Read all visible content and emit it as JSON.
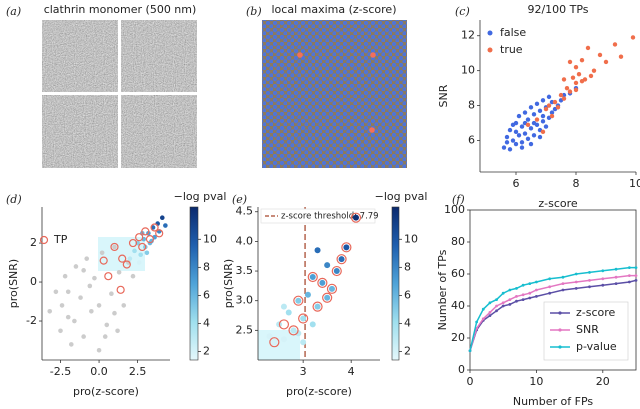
{
  "panel_labels": [
    "(a)",
    "(b)",
    "(c)",
    "(d)",
    "(e)",
    "(f)"
  ],
  "images": [
    {
      "title": "clathrin monomer (500 nm)"
    },
    {
      "title": "local maxima (z-score)"
    }
  ],
  "chart_data": [
    {
      "type": "scatter",
      "title": "92/100 TPs",
      "xlabel": "z-score",
      "ylabel": "SNR",
      "xlim": [
        4.8,
        10.0
      ],
      "ylim": [
        4.2,
        12.9
      ],
      "xticks": [
        6,
        8,
        10
      ],
      "yticks": [
        6,
        8,
        10,
        12
      ],
      "legend": "upper left",
      "series": [
        {
          "name": "false",
          "color": "#4169e1",
          "x": [
            5.6,
            5.7,
            5.8,
            5.8,
            5.9,
            5.9,
            6.0,
            6.0,
            6.1,
            6.1,
            6.2,
            6.2,
            6.3,
            6.3,
            6.4,
            6.4,
            6.5,
            6.5,
            6.6,
            6.6,
            6.7,
            6.7,
            6.8,
            6.8,
            6.9,
            6.9,
            7.0,
            7.0,
            7.1,
            7.1,
            7.2,
            7.3,
            7.4,
            7.5,
            7.6,
            7.8,
            8.0,
            5.7,
            6.0,
            6.3,
            6.6,
            6.9,
            7.2,
            6.2,
            6.5,
            6.8
          ],
          "y": [
            5.6,
            6.2,
            5.5,
            6.6,
            6.0,
            6.9,
            5.8,
            7.0,
            6.3,
            7.4,
            5.9,
            6.8,
            6.4,
            7.6,
            6.1,
            7.2,
            6.7,
            7.9,
            6.3,
            7.5,
            6.9,
            8.1,
            6.6,
            7.7,
            7.1,
            8.3,
            6.8,
            7.9,
            7.3,
            8.5,
            7.6,
            7.8,
            8.0,
            8.3,
            8.6,
            8.7,
            9.0,
            5.9,
            6.5,
            7.0,
            7.0,
            7.4,
            8.2,
            5.6,
            5.8,
            6.2
          ]
        },
        {
          "name": "true",
          "color": "#f06e4b",
          "x": [
            6.4,
            6.7,
            6.9,
            7.0,
            7.2,
            7.3,
            7.4,
            7.5,
            7.6,
            7.7,
            7.8,
            7.9,
            8.0,
            8.0,
            8.1,
            8.2,
            8.3,
            8.4,
            8.5,
            8.6,
            8.8,
            9.0,
            9.3,
            9.5,
            9.9,
            7.1,
            7.8,
            8.2,
            8.0,
            7.6
          ],
          "y": [
            6.9,
            7.2,
            6.5,
            7.8,
            7.4,
            8.2,
            7.9,
            8.6,
            8.4,
            9.0,
            8.8,
            9.6,
            9.3,
            10.2,
            9.8,
            10.6,
            9.5,
            11.3,
            9.7,
            10.0,
            10.9,
            10.5,
            11.5,
            10.8,
            11.9,
            8.0,
            10.5,
            9.4,
            8.9,
            9.5
          ]
        }
      ]
    },
    {
      "type": "scatter",
      "xlabel": "pro(z-score)",
      "ylabel": "pro(SNR)",
      "xlim": [
        -3.7,
        4.6
      ],
      "ylim": [
        -4.0,
        3.85
      ],
      "xticks": [
        -2.5,
        {
          "value": 0,
          "label": "0.0"
        },
        2.5
      ],
      "yticks": [
        -2,
        0,
        2
      ],
      "legend": "upper left",
      "colorbar": {
        "label": "−log pval",
        "lim": [
          1.4,
          12.3
        ],
        "ticks": [
          2,
          4,
          6,
          8,
          10
        ]
      },
      "series": [
        {
          "color": "#cccccc",
          "x": [
            -3.2,
            -2.8,
            -2.5,
            -2.2,
            -2.0,
            -1.8,
            -1.5,
            -1.2,
            -1.0,
            -0.8,
            -0.5,
            -0.3,
            0.0,
            0.2,
            0.5,
            0.8,
            1.0,
            1.3,
            1.6,
            1.9,
            2.2,
            -2.4,
            -1.6,
            -0.6,
            0.4,
            1.2,
            -1.0,
            0.0,
            1.0,
            -2.0
          ],
          "y": [
            -1.5,
            -0.5,
            -2.5,
            0.3,
            -1.8,
            -3.2,
            0.8,
            -0.8,
            -2.8,
            1.2,
            -1.5,
            0.2,
            -3.5,
            1.5,
            -2.2,
            -0.6,
            1.8,
            0.5,
            -1.2,
            1.0,
            0.3,
            -1.2,
            -2.0,
            -0.2,
            -2.8,
            -2.5,
            0.6,
            -1.2,
            -1.6,
            -0.5
          ]
        },
        {
          "x": [
            2.0,
            2.3,
            2.5,
            2.7,
            2.9,
            3.0,
            3.2,
            3.3,
            3.5,
            3.6,
            3.8,
            3.9,
            4.1,
            4.3,
            2.6,
            3.1,
            3.4,
            2.8
          ],
          "y": [
            1.2,
            1.6,
            2.0,
            1.4,
            2.2,
            1.8,
            2.5,
            2.0,
            2.8,
            2.3,
            3.0,
            2.6,
            3.3,
            2.9,
            1.0,
            1.5,
            2.1,
            2.5
          ],
          "c": [
            3,
            4,
            5,
            4,
            6,
            5,
            7,
            6,
            9,
            7,
            10,
            8,
            11,
            9,
            2,
            5,
            6,
            6
          ]
        },
        {
          "name": "TP",
          "color": "#e8685a",
          "marker": "ring",
          "x": [
            0.6,
            1.0,
            1.4,
            1.8,
            2.2,
            2.6,
            3.0,
            3.3,
            3.6,
            3.9,
            0.3,
            1.5,
            2.8
          ],
          "y": [
            0.3,
            1.8,
            -0.4,
            0.9,
            2.0,
            2.3,
            2.6,
            2.2,
            2.8,
            2.5,
            1.1,
            1.2,
            1.8
          ]
        }
      ]
    },
    {
      "type": "scatter",
      "xlabel": "pro(z-score)",
      "ylabel": "pro(SNR)",
      "xlim": [
        2.06,
        4.6
      ],
      "ylim": [
        2.0,
        4.58
      ],
      "xticks": [
        3,
        4
      ],
      "yticks": [
        2.5,
        {
          "value": 3,
          "label": "3.0"
        },
        3.5,
        {
          "value": 4,
          "label": "4.0"
        },
        4.5
      ],
      "threshold": {
        "value": 3.04,
        "label": "z-score threshold: 7.79",
        "color": "#b5654f"
      },
      "colorbar": {
        "label": "−log pval",
        "lim": [
          1.4,
          12.3
        ],
        "ticks": [
          2,
          4,
          6,
          8,
          10
        ]
      },
      "series": [
        {
          "x": [
            2.3,
            2.4,
            2.5,
            2.6,
            2.7,
            2.8,
            2.9,
            3.0,
            3.1,
            3.2,
            3.3,
            3.4,
            3.5,
            3.6,
            3.7,
            3.8,
            3.9,
            4.1,
            2.9,
            3.2,
            3.5,
            3.3,
            2.6,
            3.0
          ],
          "y": [
            2.4,
            2.3,
            2.6,
            2.35,
            2.8,
            2.5,
            3.0,
            2.7,
            3.1,
            3.4,
            2.9,
            3.3,
            3.6,
            3.2,
            3.5,
            3.7,
            3.9,
            4.4,
            2.45,
            2.6,
            3.05,
            3.85,
            2.9,
            2.3
          ],
          "c": [
            2,
            2,
            3,
            2,
            4,
            3,
            5,
            4,
            6,
            7,
            5,
            7,
            8,
            6,
            8,
            9,
            10,
            12,
            3,
            4,
            6,
            9,
            3,
            3
          ]
        },
        {
          "color": "#e8685a",
          "marker": "ring",
          "x": [
            2.4,
            2.6,
            2.8,
            3.0,
            3.2,
            3.4,
            3.6,
            3.7,
            3.8,
            3.9,
            4.1,
            2.9,
            3.3,
            3.5
          ],
          "y": [
            2.3,
            2.6,
            2.5,
            2.7,
            3.4,
            3.3,
            3.2,
            3.5,
            3.7,
            3.9,
            4.4,
            3.0,
            2.9,
            3.05
          ]
        }
      ]
    },
    {
      "type": "line",
      "xlabel": "Number of FPs",
      "ylabel": "Number of TPs",
      "xlim": [
        0,
        25
      ],
      "ylim": [
        0,
        100
      ],
      "xticks": [
        0,
        10,
        20
      ],
      "yticks": [
        0,
        20,
        40,
        60,
        80,
        100
      ],
      "legend": "lower right",
      "x": [
        0,
        1,
        2,
        3,
        4,
        5,
        6,
        7,
        8,
        9,
        10,
        12,
        14,
        16,
        18,
        20,
        22,
        24,
        25
      ],
      "series": [
        {
          "name": "z-score",
          "color": "#5b4fa6",
          "values": [
            12,
            25,
            31,
            34,
            37,
            40,
            41,
            43,
            44,
            45,
            46,
            48,
            50,
            51,
            52,
            53,
            54,
            55,
            56
          ]
        },
        {
          "name": "SNR",
          "color": "#e377c2",
          "values": [
            12,
            26,
            32,
            36,
            40,
            42,
            44,
            46,
            47,
            48,
            50,
            52,
            54,
            55,
            56,
            57,
            58,
            59,
            59
          ]
        },
        {
          "name": "p-value",
          "color": "#17becf",
          "values": [
            12,
            30,
            38,
            42,
            44,
            48,
            50,
            51,
            53,
            54,
            55,
            57,
            58,
            60,
            61,
            62,
            63,
            64,
            64
          ]
        }
      ]
    }
  ]
}
